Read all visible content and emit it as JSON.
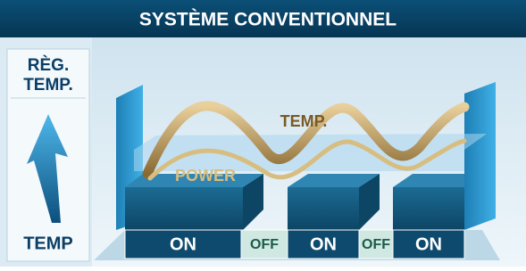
{
  "header": {
    "title": "SYSTÈME CONVENTIONNEL"
  },
  "side_panel": {
    "line1": "RÈG.",
    "line2": "TEMP.",
    "bottom": "TEMP"
  },
  "curves": {
    "temp_label": "TEMP.",
    "power_label": "POWER"
  },
  "states": [
    "ON",
    "OFF",
    "ON",
    "OFF",
    "ON"
  ]
}
